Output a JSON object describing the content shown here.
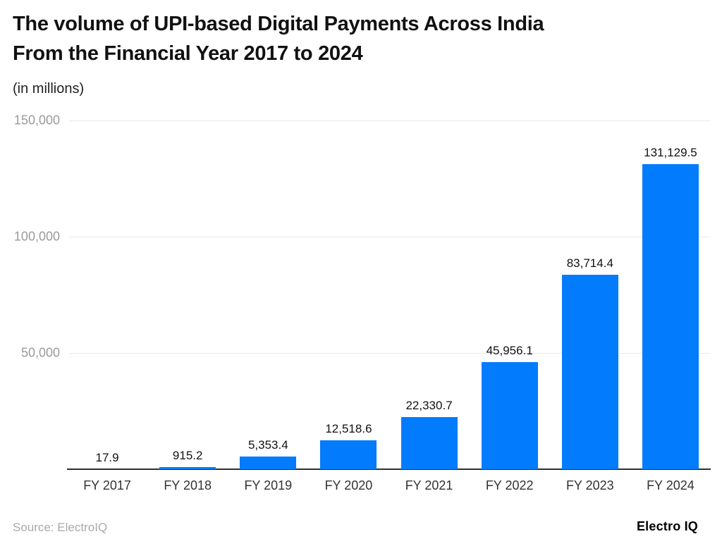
{
  "header": {
    "title_lines": [
      "The volume of UPI-based Digital Payments Across India",
      "From the Financial Year 2017 to 2024"
    ],
    "subtitle": "(in millions)"
  },
  "chart_data": {
    "type": "bar",
    "title": "The volume of UPI-based Digital Payments Across India From the Financial Year 2017 to 2024",
    "subtitle": "(in millions)",
    "categories": [
      "FY 2017",
      "FY 2018",
      "FY 2019",
      "FY 2020",
      "FY 2021",
      "FY 2022",
      "FY 2023",
      "FY 2024"
    ],
    "values": [
      17.9,
      915.2,
      5353.4,
      12518.6,
      22330.7,
      45956.1,
      83714.4,
      131129.5
    ],
    "value_labels": [
      "17.9",
      "915.2",
      "5,353.4",
      "12,518.6",
      "22,330.7",
      "45,956.1",
      "83,714.4",
      "131,129.5"
    ],
    "xlabel": "",
    "ylabel": "(in millions)",
    "ylim": [
      0,
      150000
    ],
    "yticks": [
      {
        "value": 150000,
        "label": "150,000"
      },
      {
        "value": 100000,
        "label": "100,000"
      },
      {
        "value": 50000,
        "label": "50,000"
      }
    ],
    "grid": true,
    "legend": false,
    "bar_color": "#027BFC",
    "grid_color": "#E9E9E9",
    "axis_color": "#2F2F2F",
    "tick_color": "#9A9A9A"
  },
  "footer": {
    "source": "Source: ElectroIQ",
    "brand": "Electro IQ"
  }
}
